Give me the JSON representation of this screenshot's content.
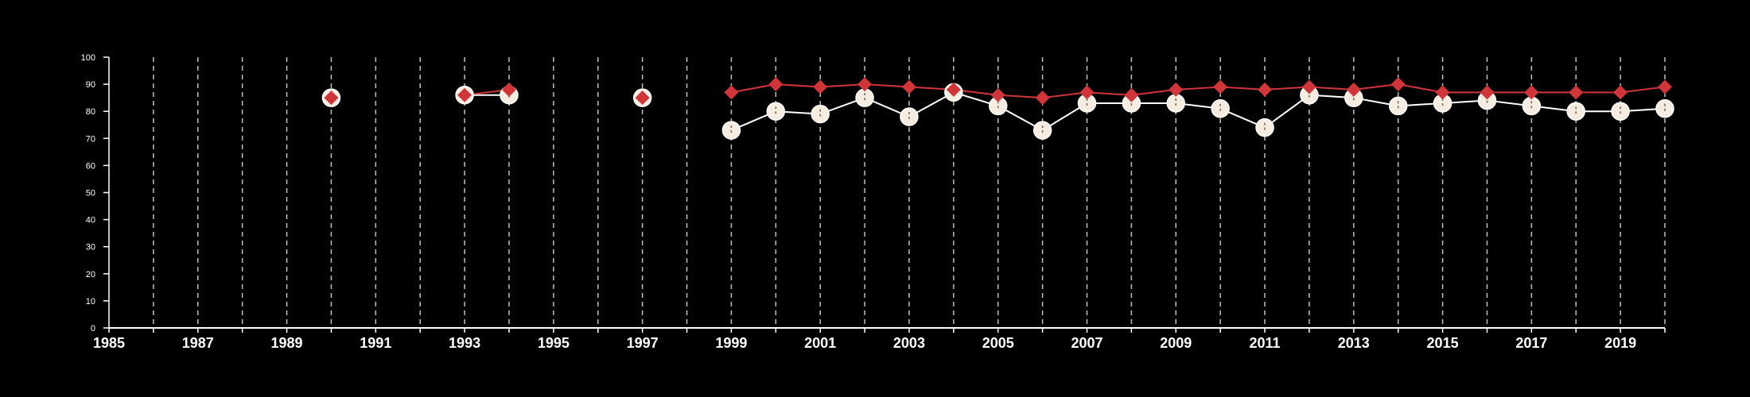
{
  "chart_data": {
    "type": "line",
    "title": "",
    "xlabel": "",
    "ylabel": "",
    "xlim": [
      1985,
      2020
    ],
    "ylim": [
      0,
      100
    ],
    "grid": "vertical-dashed",
    "legend": "none",
    "background_color": "#000000",
    "axis_color": "#ffffff",
    "grid_color": "#bfbfbf",
    "yticks": [
      0,
      10,
      20,
      30,
      40,
      50,
      60,
      70,
      80,
      90,
      100
    ],
    "ytick_labels": [
      "0",
      "10",
      "20",
      "30",
      "40",
      "50",
      "60",
      "70",
      "80",
      "90",
      "100"
    ],
    "xticks": [
      1985,
      1987,
      1989,
      1991,
      1993,
      1995,
      1997,
      1999,
      2001,
      2003,
      2005,
      2007,
      2009,
      2011,
      2013,
      2015,
      2017,
      2019
    ],
    "xtick_labels": [
      "1985",
      "1987",
      "1989",
      "1991",
      "1993",
      "1995",
      "1997",
      "1999",
      "2001",
      "2003",
      "2005",
      "2007",
      "2009",
      "2011",
      "2013",
      "2015",
      "2017",
      "2019"
    ],
    "series": [
      {
        "marker": "circle",
        "color": "#f7ece0",
        "stroke_color": "#ffffff",
        "points": [
          [
            1990,
            85
          ],
          [
            1993,
            86
          ],
          [
            1994,
            86
          ],
          [
            1997,
            85
          ],
          [
            1999,
            73
          ],
          [
            2000,
            80
          ],
          [
            2001,
            79
          ],
          [
            2002,
            85
          ],
          [
            2003,
            78
          ],
          [
            2004,
            87
          ],
          [
            2005,
            82
          ],
          [
            2006,
            73
          ],
          [
            2007,
            83
          ],
          [
            2008,
            83
          ],
          [
            2009,
            83
          ],
          [
            2010,
            81
          ],
          [
            2011,
            74
          ],
          [
            2012,
            86
          ],
          [
            2013,
            85
          ],
          [
            2014,
            82
          ],
          [
            2015,
            83
          ],
          [
            2016,
            84
          ],
          [
            2017,
            82
          ],
          [
            2018,
            80
          ],
          [
            2019,
            80
          ],
          [
            2020,
            81
          ]
        ]
      },
      {
        "marker": "diamond",
        "color": "#d0353a",
        "stroke_color": "#d0353a",
        "points": [
          [
            1990,
            85
          ],
          [
            1993,
            86
          ],
          [
            1994,
            88
          ],
          [
            1997,
            85
          ],
          [
            1999,
            87
          ],
          [
            2000,
            90
          ],
          [
            2001,
            89
          ],
          [
            2002,
            90
          ],
          [
            2003,
            89
          ],
          [
            2004,
            88
          ],
          [
            2005,
            86
          ],
          [
            2006,
            85
          ],
          [
            2007,
            87
          ],
          [
            2008,
            86
          ],
          [
            2009,
            88
          ],
          [
            2010,
            89
          ],
          [
            2011,
            88
          ],
          [
            2012,
            89
          ],
          [
            2013,
            88
          ],
          [
            2014,
            90
          ],
          [
            2015,
            87
          ],
          [
            2016,
            87
          ],
          [
            2017,
            87
          ],
          [
            2018,
            87
          ],
          [
            2019,
            87
          ],
          [
            2020,
            89
          ]
        ]
      }
    ]
  }
}
